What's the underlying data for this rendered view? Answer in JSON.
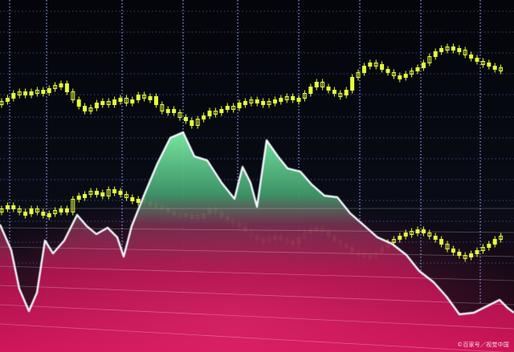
{
  "image": {
    "subject": "stock-market-candlestick-and-area-chart-artwork",
    "background_color": "#05070c",
    "grid_color": "#8ea0ff",
    "candle_color": "#e6ff3c",
    "area_top_color": "#7ef0a8",
    "area_bottom_color": "#d4145a"
  },
  "watermark": {
    "text": "©百家号／视觉中国"
  }
}
